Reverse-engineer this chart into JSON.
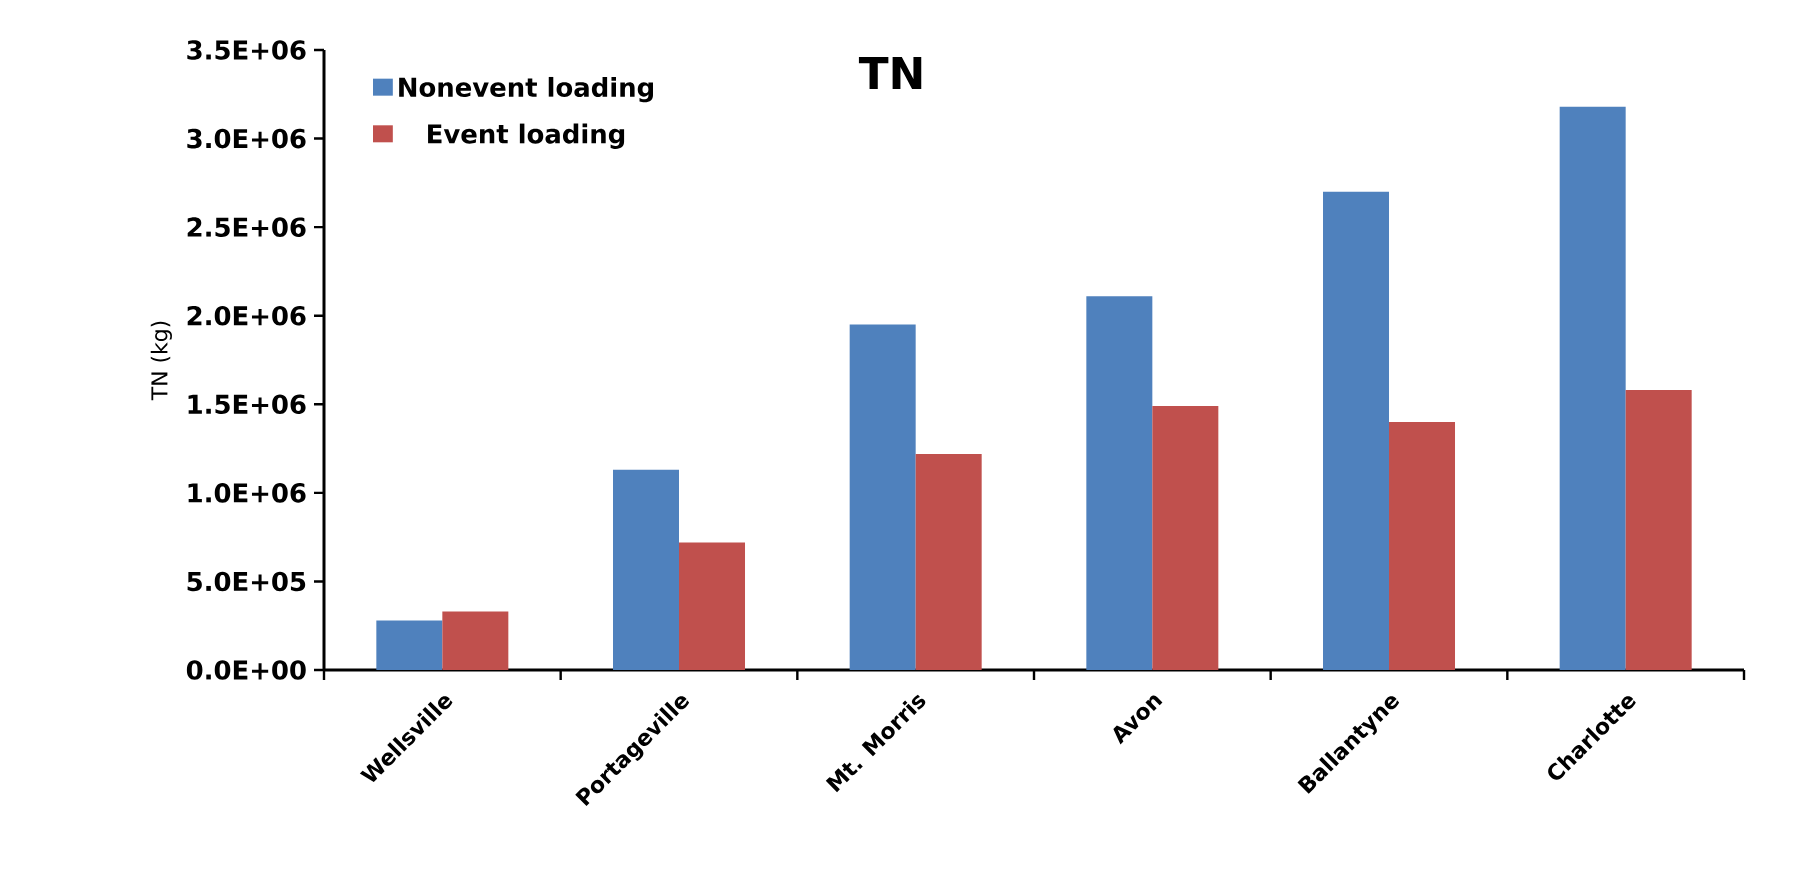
{
  "chart_data": {
    "type": "bar",
    "title": "TN",
    "ylabel": "TN (kg)",
    "categories": [
      "Wellsville",
      "Portageville",
      "Mt. Morris",
      "Avon",
      "Ballantyne",
      "Charlotte"
    ],
    "series": [
      {
        "name": "Nonevent loading",
        "color": "#4f81bd",
        "values": [
          280000,
          1130000,
          1950000,
          2110000,
          2700000,
          3180000
        ]
      },
      {
        "name": "Event loading",
        "color": "#c0504d",
        "values": [
          330000,
          720000,
          1220000,
          1490000,
          1400000,
          1580000
        ]
      }
    ],
    "ylim": [
      0,
      3500000
    ],
    "yticks": [
      {
        "value": 0,
        "label": "0.0E+00"
      },
      {
        "value": 500000,
        "label": "5.0E+05"
      },
      {
        "value": 1000000,
        "label": "1.0E+06"
      },
      {
        "value": 1500000,
        "label": "1.5E+06"
      },
      {
        "value": 2000000,
        "label": "2.0E+06"
      },
      {
        "value": 2500000,
        "label": "2.5E+06"
      },
      {
        "value": 3000000,
        "label": "3.0E+06"
      },
      {
        "value": 3500000,
        "label": "3.5E+06"
      }
    ],
    "grid": false,
    "legend": "top left"
  }
}
